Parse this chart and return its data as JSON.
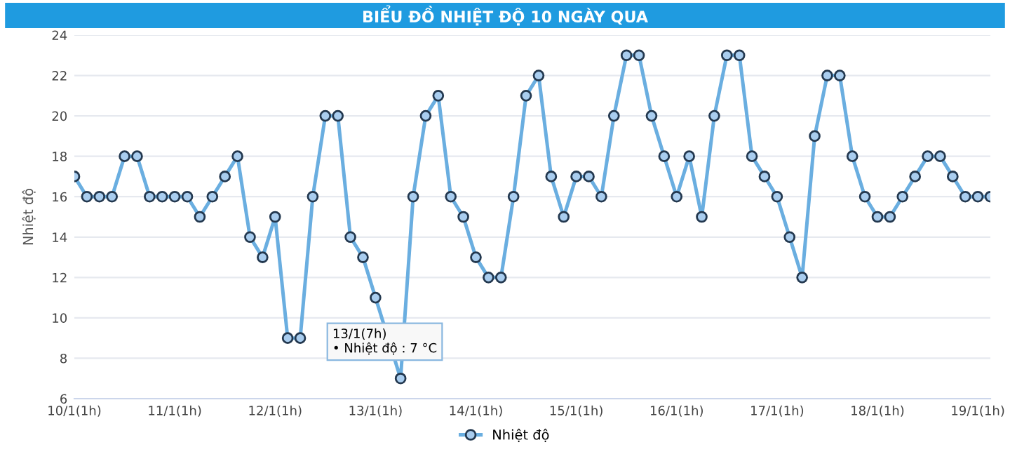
{
  "chart_data": {
    "type": "line",
    "title": "BIỂU ĐỒ NHIỆT ĐỘ 10 NGÀY QUA",
    "ylabel": "Nhiệt độ",
    "categories": [
      "10/1(1h)",
      null,
      null,
      null,
      null,
      null,
      null,
      null,
      "11/1(1h)",
      null,
      null,
      null,
      null,
      null,
      null,
      null,
      "12/1(1h)",
      null,
      null,
      null,
      null,
      null,
      null,
      null,
      "13/1(1h)",
      null,
      null,
      null,
      null,
      null,
      null,
      null,
      "14/1(1h)",
      null,
      null,
      null,
      null,
      null,
      null,
      null,
      "15/1(1h)",
      null,
      null,
      null,
      null,
      null,
      null,
      null,
      "16/1(1h)",
      null,
      null,
      null,
      null,
      null,
      null,
      null,
      "17/1(1h)",
      null,
      null,
      null,
      null,
      null,
      null,
      null,
      "18/1(1h)",
      null,
      null,
      null,
      null,
      null,
      null,
      null,
      "19/1(1h)",
      null
    ],
    "series": [
      {
        "name": "Nhiệt độ",
        "color": "#6aaee0",
        "values": [
          17,
          16,
          16,
          16,
          18,
          18,
          16,
          16,
          16,
          16,
          15,
          16,
          17,
          18,
          14,
          13,
          15,
          9,
          9,
          16,
          20,
          20,
          14,
          13,
          11,
          null,
          7,
          16,
          20,
          21,
          16,
          15,
          13,
          12,
          12,
          16,
          21,
          22,
          17,
          15,
          17,
          17,
          16,
          20,
          23,
          23,
          20,
          18,
          16,
          18,
          15,
          20,
          23,
          23,
          18,
          17,
          16,
          14,
          12,
          19,
          22,
          22,
          18,
          16,
          15,
          15,
          16,
          17,
          18,
          18,
          17,
          16,
          16,
          16
        ]
      }
    ],
    "ylim": [
      6,
      24
    ],
    "yticks": [
      6,
      8,
      10,
      12,
      14,
      16,
      18,
      20,
      22,
      24
    ],
    "annotations": [
      "13/1(7h)\n• Nhiệt độ : 7 °C"
    ],
    "grid": "y",
    "legend": "bottom",
    "marker": "circle",
    "line_style": "solid"
  }
}
